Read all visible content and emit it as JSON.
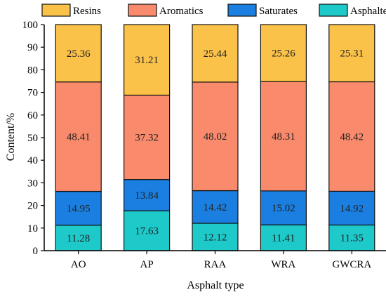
{
  "chart_data": {
    "type": "bar",
    "stacked": true,
    "categories": [
      "AO",
      "AP",
      "RAA",
      "WRA",
      "GWCRA"
    ],
    "series": [
      {
        "name": "Asphaltenes",
        "color": "#1DC9C9",
        "values": [
          11.28,
          17.63,
          12.12,
          11.41,
          11.35
        ]
      },
      {
        "name": "Saturates",
        "color": "#1A7FE0",
        "values": [
          14.95,
          13.84,
          14.42,
          15.02,
          14.92
        ]
      },
      {
        "name": "Aromatics",
        "color": "#FA8A6C",
        "values": [
          48.41,
          37.32,
          48.02,
          48.31,
          48.42
        ]
      },
      {
        "name": "Resins",
        "color": "#FBC24A",
        "values": [
          25.36,
          31.21,
          25.44,
          25.26,
          25.31
        ]
      }
    ],
    "legend_order": [
      "Resins",
      "Aromatics",
      "Saturates",
      "Asphaltenes"
    ],
    "legend_position": "top",
    "xlabel": "Asphalt type",
    "ylabel": "Content/%",
    "ylim": [
      0,
      100
    ],
    "yticks": [
      0,
      10,
      20,
      30,
      40,
      50,
      60,
      70,
      80,
      90,
      100
    ],
    "grid": false
  }
}
